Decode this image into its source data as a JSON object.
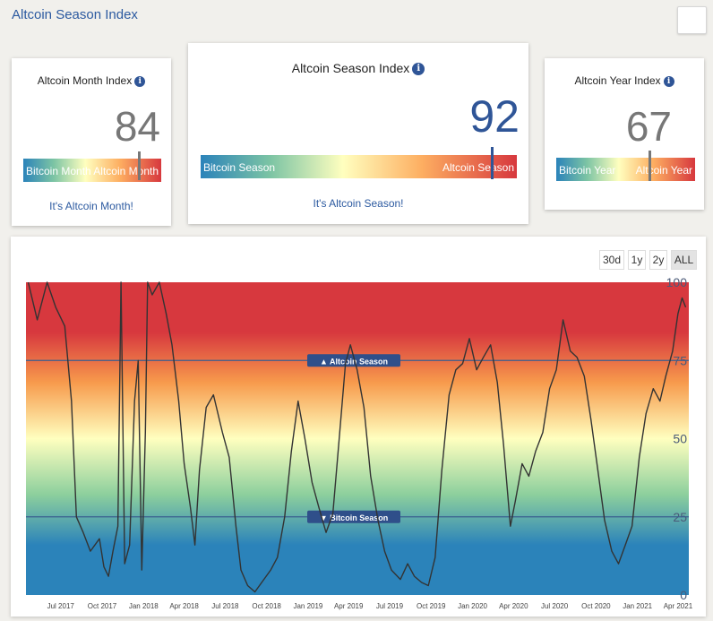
{
  "page": {
    "title": "Altcoin Season Index"
  },
  "month_card": {
    "title": "Altcoin Month Index",
    "value": "84",
    "value_num": 84,
    "bar_left": "Bitcoin Month",
    "bar_right": "Altcoin Month",
    "status": "It's Altcoin Month!",
    "marker_color": "#777777"
  },
  "season_card": {
    "title": "Altcoin Season Index",
    "value": "92",
    "value_num": 92,
    "bar_left": "Bitcoin Season",
    "bar_right": "Altcoin Season",
    "status": "It's Altcoin Season!",
    "value_color": "#2f5597",
    "marker_color": "#2f5597"
  },
  "year_card": {
    "title": "Altcoin Year Index",
    "value": "67",
    "value_num": 67,
    "bar_left": "Bitcoin Year",
    "bar_right": "Altcoin Year",
    "status": "",
    "marker_color": "#777777"
  },
  "info_icon": "info-icon",
  "range_buttons": [
    {
      "label": "30d",
      "active": false
    },
    {
      "label": "1y",
      "active": false
    },
    {
      "label": "2y",
      "active": false
    },
    {
      "label": "ALL",
      "active": true
    }
  ],
  "chart_data": {
    "type": "line",
    "title": "",
    "xlabel": "",
    "ylabel": "",
    "ylim": [
      0,
      100
    ],
    "x_ticks": [
      "Jul 2017",
      "Oct 2017",
      "Jan 2018",
      "Apr 2018",
      "Jul 2018",
      "Oct 2018",
      "Jan 2019",
      "Apr 2019",
      "Jul 2019",
      "Oct 2019",
      "Jan 2020",
      "Apr 2020",
      "Jul 2020",
      "Oct 2020",
      "Jan 2021",
      "Apr 2021"
    ],
    "y_ticks": [
      0,
      25,
      50,
      75,
      100
    ],
    "y_tick_labels": [
      "0",
      "25",
      "50",
      "75",
      "100"
    ],
    "thresholds": [
      {
        "value": 75,
        "label": "▲ Altcoin Season"
      },
      {
        "value": 25,
        "label": "▼ Bitcoin Season"
      }
    ],
    "series": [
      {
        "values": [
          {
            "x": "2017-04-20",
            "y": 100
          },
          {
            "x": "2017-05-10",
            "y": 88
          },
          {
            "x": "2017-06-01",
            "y": 100
          },
          {
            "x": "2017-06-20",
            "y": 92
          },
          {
            "x": "2017-07-10",
            "y": 86
          },
          {
            "x": "2017-07-25",
            "y": 62
          },
          {
            "x": "2017-08-05",
            "y": 25
          },
          {
            "x": "2017-08-20",
            "y": 20
          },
          {
            "x": "2017-09-05",
            "y": 14
          },
          {
            "x": "2017-09-25",
            "y": 18
          },
          {
            "x": "2017-10-05",
            "y": 9
          },
          {
            "x": "2017-10-15",
            "y": 6
          },
          {
            "x": "2017-10-25",
            "y": 14
          },
          {
            "x": "2017-11-05",
            "y": 22
          },
          {
            "x": "2017-11-12",
            "y": 100
          },
          {
            "x": "2017-11-20",
            "y": 10
          },
          {
            "x": "2017-12-01",
            "y": 16
          },
          {
            "x": "2017-12-12",
            "y": 62
          },
          {
            "x": "2017-12-20",
            "y": 75
          },
          {
            "x": "2017-12-28",
            "y": 8
          },
          {
            "x": "2018-01-05",
            "y": 52
          },
          {
            "x": "2018-01-10",
            "y": 100
          },
          {
            "x": "2018-01-20",
            "y": 96
          },
          {
            "x": "2018-02-05",
            "y": 100
          },
          {
            "x": "2018-02-20",
            "y": 90
          },
          {
            "x": "2018-03-05",
            "y": 80
          },
          {
            "x": "2018-03-20",
            "y": 62
          },
          {
            "x": "2018-04-01",
            "y": 42
          },
          {
            "x": "2018-04-15",
            "y": 28
          },
          {
            "x": "2018-04-25",
            "y": 16
          },
          {
            "x": "2018-05-05",
            "y": 40
          },
          {
            "x": "2018-05-20",
            "y": 60
          },
          {
            "x": "2018-06-05",
            "y": 64
          },
          {
            "x": "2018-06-25",
            "y": 52
          },
          {
            "x": "2018-07-10",
            "y": 44
          },
          {
            "x": "2018-07-25",
            "y": 22
          },
          {
            "x": "2018-08-05",
            "y": 8
          },
          {
            "x": "2018-08-20",
            "y": 3
          },
          {
            "x": "2018-09-05",
            "y": 1
          },
          {
            "x": "2018-09-25",
            "y": 5
          },
          {
            "x": "2018-10-10",
            "y": 8
          },
          {
            "x": "2018-10-25",
            "y": 12
          },
          {
            "x": "2018-11-10",
            "y": 25
          },
          {
            "x": "2018-11-25",
            "y": 46
          },
          {
            "x": "2018-12-10",
            "y": 62
          },
          {
            "x": "2018-12-25",
            "y": 50
          },
          {
            "x": "2019-01-10",
            "y": 36
          },
          {
            "x": "2019-01-25",
            "y": 28
          },
          {
            "x": "2019-02-10",
            "y": 20
          },
          {
            "x": "2019-02-25",
            "y": 26
          },
          {
            "x": "2019-03-10",
            "y": 48
          },
          {
            "x": "2019-03-25",
            "y": 74
          },
          {
            "x": "2019-04-05",
            "y": 80
          },
          {
            "x": "2019-04-20",
            "y": 72
          },
          {
            "x": "2019-05-05",
            "y": 60
          },
          {
            "x": "2019-05-20",
            "y": 38
          },
          {
            "x": "2019-06-05",
            "y": 24
          },
          {
            "x": "2019-06-20",
            "y": 14
          },
          {
            "x": "2019-07-05",
            "y": 8
          },
          {
            "x": "2019-07-25",
            "y": 5
          },
          {
            "x": "2019-08-10",
            "y": 10
          },
          {
            "x": "2019-08-25",
            "y": 6
          },
          {
            "x": "2019-09-10",
            "y": 4
          },
          {
            "x": "2019-09-25",
            "y": 3
          },
          {
            "x": "2019-10-10",
            "y": 12
          },
          {
            "x": "2019-10-25",
            "y": 40
          },
          {
            "x": "2019-11-10",
            "y": 64
          },
          {
            "x": "2019-11-25",
            "y": 72
          },
          {
            "x": "2019-12-10",
            "y": 74
          },
          {
            "x": "2019-12-25",
            "y": 82
          },
          {
            "x": "2020-01-10",
            "y": 72
          },
          {
            "x": "2020-01-25",
            "y": 76
          },
          {
            "x": "2020-02-10",
            "y": 80
          },
          {
            "x": "2020-02-25",
            "y": 68
          },
          {
            "x": "2020-03-10",
            "y": 48
          },
          {
            "x": "2020-03-25",
            "y": 22
          },
          {
            "x": "2020-04-05",
            "y": 30
          },
          {
            "x": "2020-04-20",
            "y": 42
          },
          {
            "x": "2020-05-05",
            "y": 38
          },
          {
            "x": "2020-05-20",
            "y": 46
          },
          {
            "x": "2020-06-05",
            "y": 52
          },
          {
            "x": "2020-06-20",
            "y": 66
          },
          {
            "x": "2020-07-05",
            "y": 72
          },
          {
            "x": "2020-07-20",
            "y": 88
          },
          {
            "x": "2020-08-05",
            "y": 78
          },
          {
            "x": "2020-08-20",
            "y": 76
          },
          {
            "x": "2020-09-05",
            "y": 70
          },
          {
            "x": "2020-09-20",
            "y": 56
          },
          {
            "x": "2020-10-05",
            "y": 40
          },
          {
            "x": "2020-10-20",
            "y": 24
          },
          {
            "x": "2020-11-05",
            "y": 14
          },
          {
            "x": "2020-11-20",
            "y": 10
          },
          {
            "x": "2020-12-05",
            "y": 16
          },
          {
            "x": "2020-12-20",
            "y": 22
          },
          {
            "x": "2021-01-05",
            "y": 44
          },
          {
            "x": "2021-01-20",
            "y": 58
          },
          {
            "x": "2021-02-05",
            "y": 66
          },
          {
            "x": "2021-02-20",
            "y": 62
          },
          {
            "x": "2021-03-05",
            "y": 70
          },
          {
            "x": "2021-03-20",
            "y": 78
          },
          {
            "x": "2021-04-01",
            "y": 90
          },
          {
            "x": "2021-04-10",
            "y": 95
          },
          {
            "x": "2021-04-18",
            "y": 92
          }
        ]
      }
    ]
  }
}
